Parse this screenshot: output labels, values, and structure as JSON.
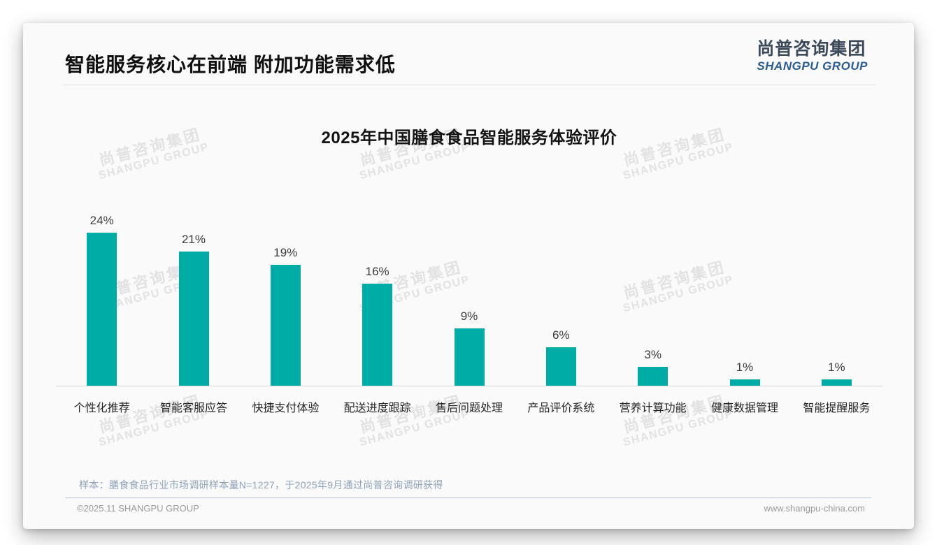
{
  "page": {
    "title": "智能服务核心在前端 附加功能需求低",
    "logo": {
      "cn": "尚普咨询集团",
      "en": "SHANGPU GROUP"
    },
    "watermark": {
      "cn": "尚普咨询集团",
      "en": "SHANGPU GROUP"
    },
    "note": "样本：膳食食品行业市场调研样本量N=1227，于2025年9月通过尚普咨询调研获得",
    "footer": {
      "left": "©2025.11 SHANGPU GROUP",
      "right": "www.shangpu-china.com"
    }
  },
  "chart_data": {
    "type": "bar",
    "title": "2025年中国膳食食品智能服务体验评价",
    "categories": [
      "个性化推荐",
      "智能客服应答",
      "快捷支付体验",
      "配送进度跟踪",
      "售后问题处理",
      "产品评价系统",
      "营养计算功能",
      "健康数据管理",
      "智能提醒服务"
    ],
    "values": [
      24,
      21,
      19,
      16,
      9,
      6,
      3,
      1,
      1
    ],
    "value_labels": [
      "24%",
      "21%",
      "19%",
      "16%",
      "9%",
      "6%",
      "3%",
      "1%",
      "1%"
    ],
    "unit": "%",
    "ylim": [
      0,
      26
    ],
    "grid": "off",
    "legend": "none",
    "bar_color": "#00ada6"
  },
  "colors": {
    "accent_teal": "#00ada6",
    "logo_blue": "#2b5c92",
    "logo_dark": "#3d4a59",
    "note_blue_gray": "#8fa3ba",
    "footer_gray": "#9a9a9a",
    "watermark_gray": "#e2e2e2"
  }
}
